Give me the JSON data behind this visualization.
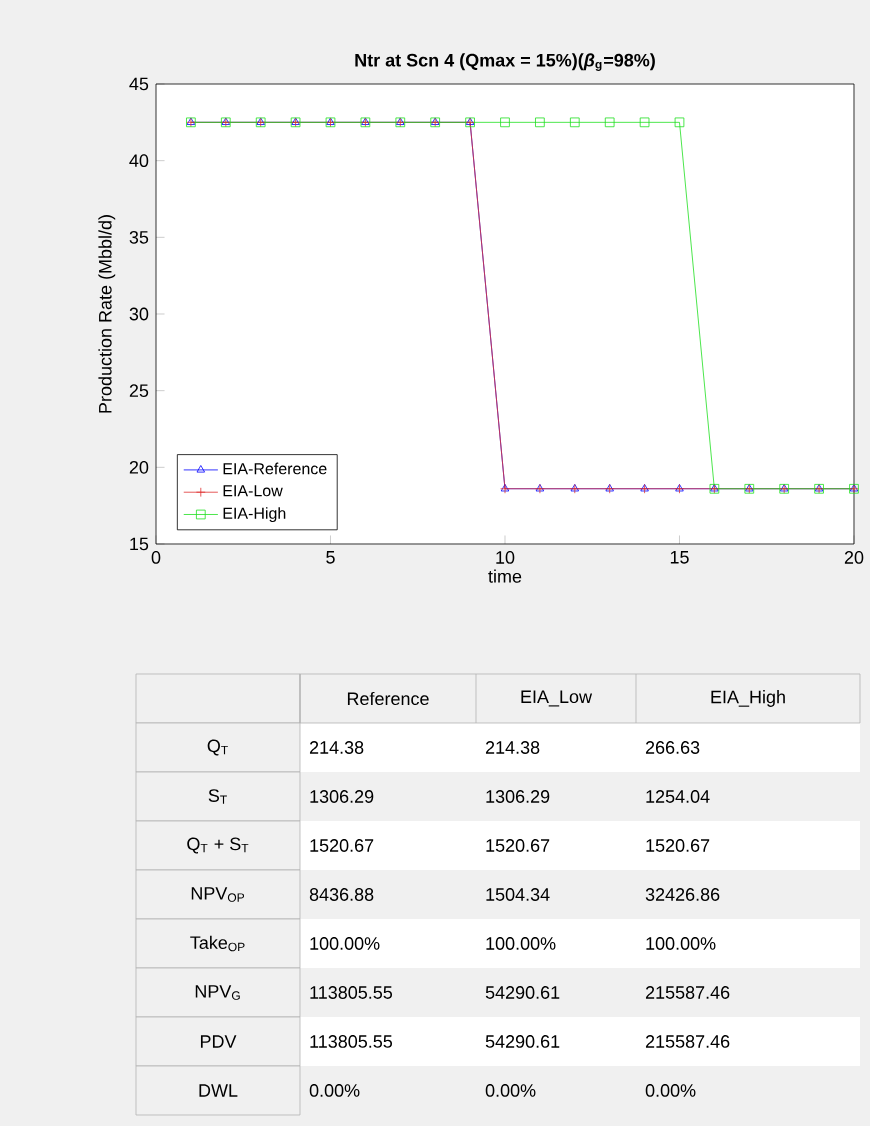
{
  "chart_data": {
    "type": "line",
    "title": "Ntr at Scn 4 (Qmax = 15%)(*β*$_{g}$=98%)",
    "xlabel": "time",
    "ylabel": "Production Rate (Mbbl/d)",
    "x": [
      1,
      2,
      3,
      4,
      5,
      6,
      7,
      8,
      9,
      10,
      11,
      12,
      13,
      14,
      15,
      16,
      17,
      18,
      19,
      20
    ],
    "series": [
      {
        "name": "EIA-Reference",
        "color": "#0000ff",
        "marker": "triangle",
        "values": [
          42.5,
          42.5,
          42.5,
          42.5,
          42.5,
          42.5,
          42.5,
          42.5,
          42.5,
          18.6,
          18.6,
          18.6,
          18.6,
          18.6,
          18.6,
          18.6,
          18.6,
          18.6,
          18.6,
          18.6
        ]
      },
      {
        "name": "EIA-Low",
        "color": "#e03030",
        "marker": "cross",
        "values": [
          42.5,
          42.5,
          42.5,
          42.5,
          42.5,
          42.5,
          42.5,
          42.5,
          42.5,
          18.6,
          18.6,
          18.6,
          18.6,
          18.6,
          18.6,
          18.6,
          18.6,
          18.6,
          18.6,
          18.6
        ]
      },
      {
        "name": "EIA-High",
        "color": "#20e020",
        "marker": "square",
        "values": [
          42.5,
          42.5,
          42.5,
          42.5,
          42.5,
          42.5,
          42.5,
          42.5,
          42.5,
          42.5,
          42.5,
          42.5,
          42.5,
          42.5,
          42.5,
          18.6,
          18.6,
          18.6,
          18.6,
          18.6
        ]
      }
    ],
    "xlim": [
      0,
      20
    ],
    "xticks": [
      0,
      5,
      10,
      15,
      20
    ],
    "ylim": [
      15,
      45
    ],
    "yticks": [
      15,
      20,
      25,
      30,
      35,
      40,
      45
    ],
    "grid": false,
    "legend": "bottom left",
    "line_style": "solid",
    "annotations": [
      "Reference",
      "EIA_Low",
      "EIA_High",
      "Q$_{T}$",
      "214.38",
      "214.38",
      "266.63",
      "S$_{T}$",
      "1306.29",
      "1306.29",
      "1254.04",
      "Q$_{T}$ + S$_{T}$",
      "1520.67",
      "1520.67",
      "1520.67",
      "NPV$_{OP}$",
      "8436.88",
      "1504.34",
      "32426.86",
      "Take$_{OP}$",
      "100.00%",
      "100.00%",
      "100.00%",
      "NPV$_{G}$",
      "113805.55",
      "54290.61",
      "215587.46",
      "PDV",
      "113805.55",
      "54290.61",
      "215587.46",
      "DWL",
      "0.00%",
      "0.00%",
      "0.00%"
    ]
  }
}
